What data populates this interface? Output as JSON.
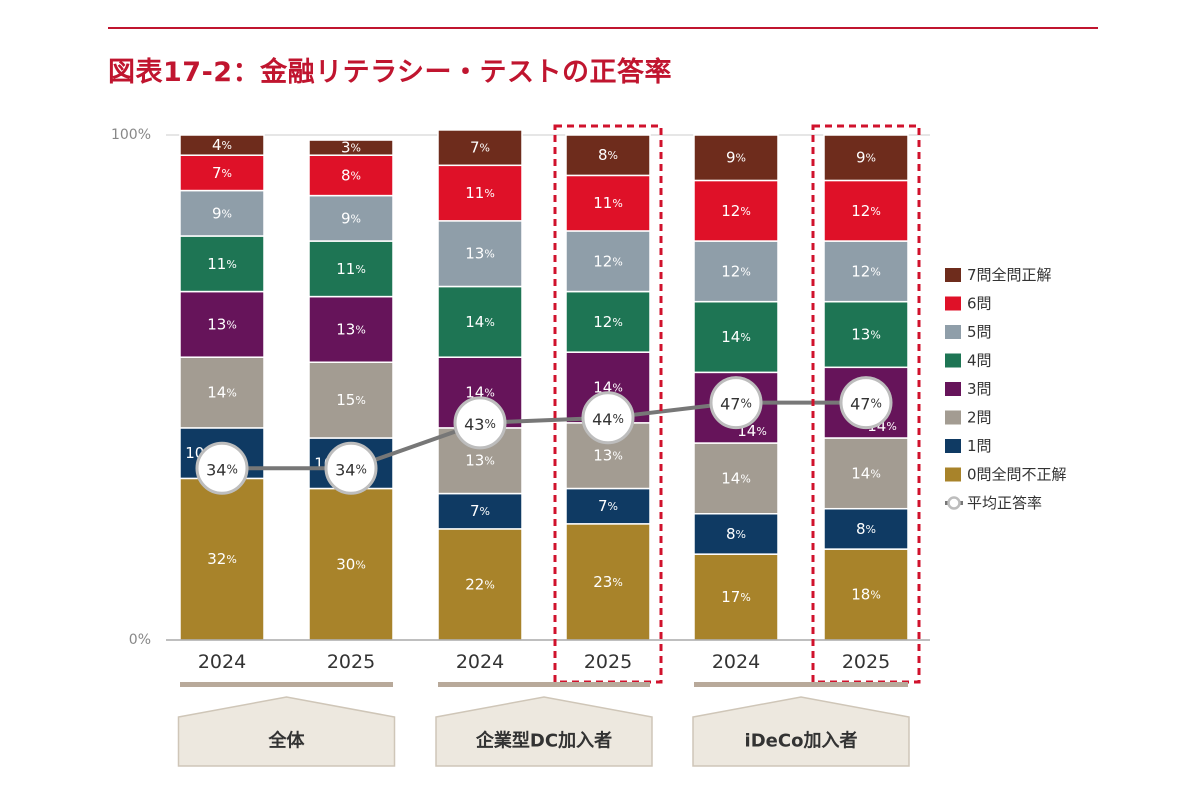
{
  "title": "図表17-2：金融リテラシー・テストの正答率",
  "colors": {
    "title": "#c0152f",
    "axis": "#888888",
    "avg_line": "#777777",
    "highlight": "#d0122c",
    "group_shape": "#ede8df",
    "group_bar": "#b8a99a"
  },
  "chart_data": {
    "type": "bar",
    "stacked": true,
    "normalized": true,
    "ylim": [
      0,
      100
    ],
    "ytick_labels": [
      "0%",
      "100%"
    ],
    "categories": [
      "2024",
      "2025",
      "2024",
      "2025",
      "2024",
      "2025"
    ],
    "groups": [
      {
        "label": "全体",
        "columns": [
          0,
          1
        ]
      },
      {
        "label": "企業型DC加入者",
        "columns": [
          2,
          3
        ]
      },
      {
        "label": "iDeCo加入者",
        "columns": [
          4,
          5
        ]
      }
    ],
    "highlighted_columns": [
      3,
      5
    ],
    "series": [
      {
        "name": "0問全問不正解",
        "color": "#a8832a",
        "values": [
          32,
          30,
          22,
          23,
          17,
          18
        ]
      },
      {
        "name": "1問",
        "color": "#0f3a63",
        "values": [
          10,
          10,
          7,
          7,
          8,
          8
        ]
      },
      {
        "name": "2問",
        "color": "#a39c92",
        "values": [
          14,
          15,
          13,
          13,
          14,
          14
        ]
      },
      {
        "name": "3問",
        "color": "#66145a",
        "values": [
          13,
          13,
          14,
          14,
          14,
          14
        ]
      },
      {
        "name": "4問",
        "color": "#1e7554",
        "values": [
          11,
          11,
          14,
          12,
          14,
          13
        ]
      },
      {
        "name": "5問",
        "color": "#8f9ea9",
        "values": [
          9,
          9,
          13,
          12,
          12,
          12
        ]
      },
      {
        "name": "6問",
        "color": "#df1128",
        "values": [
          7,
          8,
          11,
          11,
          12,
          12
        ]
      },
      {
        "name": "7問全問正解",
        "color": "#6e2c1c",
        "values": [
          4,
          3,
          7,
          8,
          9,
          9
        ]
      }
    ],
    "average": {
      "name": "平均正答率",
      "values": [
        34,
        34,
        43,
        44,
        47,
        47
      ]
    },
    "legend_position": "right"
  }
}
